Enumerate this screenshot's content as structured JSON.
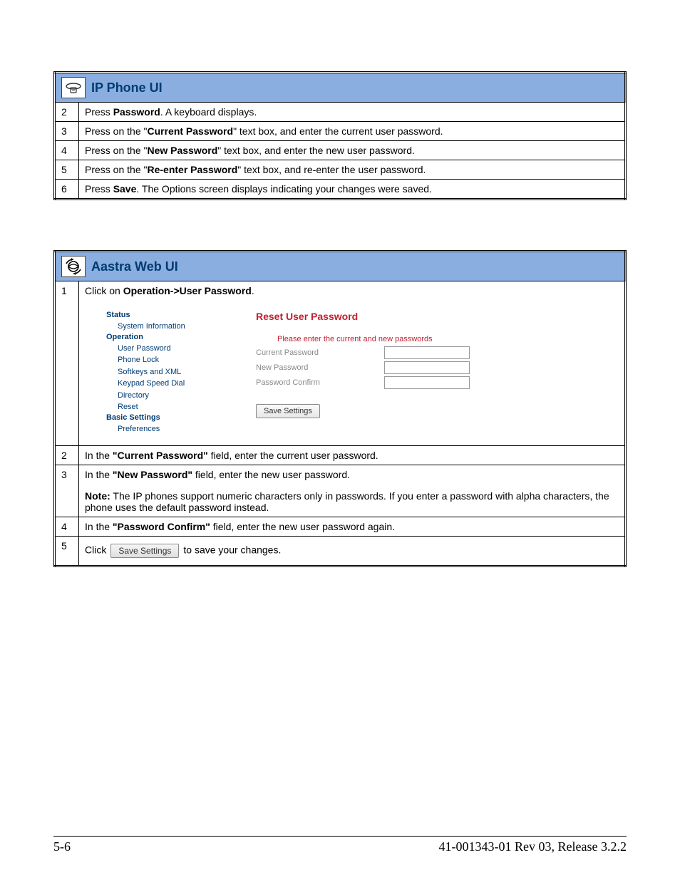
{
  "table1": {
    "header_title": "IP Phone UI",
    "header_bg": "#8aaee0",
    "title_color": "#003b73",
    "icon_name": "phone-icon",
    "rows": [
      {
        "num": "2",
        "segments": [
          {
            "text": "Press ",
            "bold": false
          },
          {
            "text": "Password",
            "bold": true
          },
          {
            "text": ". A keyboard displays.",
            "bold": false
          }
        ]
      },
      {
        "num": "3",
        "segments": [
          {
            "text": "Press on the \"",
            "bold": false
          },
          {
            "text": "Current Password",
            "bold": true
          },
          {
            "text": "\" text box, and enter the current user password.",
            "bold": false
          }
        ]
      },
      {
        "num": "4",
        "segments": [
          {
            "text": "Press on the \"",
            "bold": false
          },
          {
            "text": "New Password",
            "bold": true
          },
          {
            "text": "\" text box, and enter the new user password.",
            "bold": false
          }
        ]
      },
      {
        "num": "5",
        "segments": [
          {
            "text": "Press on the \"",
            "bold": false
          },
          {
            "text": "Re-enter Password",
            "bold": true
          },
          {
            "text": "\" text box, and re-enter the user password.",
            "bold": false
          }
        ]
      },
      {
        "num": "6",
        "segments": [
          {
            "text": "Press ",
            "bold": false
          },
          {
            "text": "Save",
            "bold": true
          },
          {
            "text": ". The Options screen displays indicating your changes were saved.",
            "bold": false
          }
        ]
      }
    ]
  },
  "table2": {
    "header_title": "Aastra Web UI",
    "header_bg": "#8aaee0",
    "title_color": "#003b73",
    "icon_name": "globe-arrows-icon",
    "row1": {
      "num": "1",
      "segments": [
        {
          "text": "Click on ",
          "bold": false
        },
        {
          "text": "Operation->User Password",
          "bold": true
        },
        {
          "text": ".",
          "bold": false
        }
      ],
      "mockup": {
        "nav": {
          "groups": [
            {
              "title": "Status",
              "items": [
                "System Information"
              ]
            },
            {
              "title": "Operation",
              "items": [
                "User Password",
                "Phone Lock",
                "Softkeys and XML",
                "Keypad Speed Dial",
                "Directory",
                "Reset"
              ]
            },
            {
              "title": "Basic Settings",
              "items": [
                "Preferences"
              ]
            }
          ],
          "text_color": "#003b73"
        },
        "main": {
          "title": "Reset User Password",
          "title_color": "#c02030",
          "subtitle": "Please enter the current and new passwords",
          "subtitle_color": "#c02030",
          "label_color": "#888888",
          "fields": [
            {
              "label": "Current Password"
            },
            {
              "label": "New Password"
            },
            {
              "label": "Password Confirm"
            }
          ],
          "button_label": "Save Settings"
        }
      }
    },
    "rows_after": [
      {
        "num": "2",
        "paras": [
          [
            {
              "text": "In the ",
              "bold": false
            },
            {
              "text": "\"Current Password\"",
              "bold": true
            },
            {
              "text": " field, enter the current user password.",
              "bold": false
            }
          ]
        ]
      },
      {
        "num": "3",
        "paras": [
          [
            {
              "text": "In the ",
              "bold": false
            },
            {
              "text": "\"New Password\"",
              "bold": true
            },
            {
              "text": " field, enter the new user password.",
              "bold": false
            }
          ],
          [
            {
              "text": "Note:",
              "bold": true
            },
            {
              "text": " The IP phones support numeric characters only in passwords. If you enter a password with alpha characters, the phone uses the default password instead.",
              "bold": false
            }
          ]
        ]
      },
      {
        "num": "4",
        "paras": [
          [
            {
              "text": "In the ",
              "bold": false
            },
            {
              "text": "\"Password Confirm\"",
              "bold": true
            },
            {
              "text": " field, enter the new user password again.",
              "bold": false
            }
          ]
        ]
      }
    ],
    "row5": {
      "num": "5",
      "pre_text": "Click",
      "button_label": "Save Settings",
      "post_text": "to save your changes."
    }
  },
  "footer": {
    "left": "5-6",
    "right": "41-001343-01 Rev 03, Release 3.2.2"
  }
}
